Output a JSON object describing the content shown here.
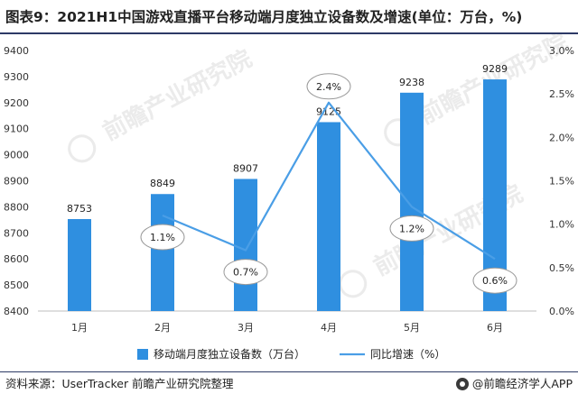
{
  "title": "图表9：2021H1中国游戏直播平台移动端月度独立设备数及增速(单位：万台，%)",
  "source": "资料来源：UserTracker 前瞻产业研究院整理",
  "brand": "@前瞻经济学人APP",
  "watermark": "前瞻产业研究院",
  "colors": {
    "bar": "#2f8fe0",
    "line": "#4a9ee6",
    "rule": "#2d3a66"
  },
  "chart_data": {
    "type": "bar",
    "categories": [
      "1月",
      "2月",
      "3月",
      "4月",
      "5月",
      "6月"
    ],
    "series": [
      {
        "name": "移动端月度独立设备数（万台）",
        "type": "bar",
        "axis": "left",
        "values": [
          8753,
          8849,
          8907,
          9125,
          9238,
          9289
        ],
        "labels": [
          "8753",
          "8849",
          "8907",
          "9125",
          "9238",
          "9289"
        ]
      },
      {
        "name": "同比增速（%）",
        "type": "line",
        "axis": "right",
        "values": [
          1.1,
          0.7,
          2.4,
          1.2,
          0.6
        ],
        "x": [
          "2月",
          "3月",
          "4月",
          "5月",
          "6月"
        ],
        "labels": [
          "1.1%",
          "0.7%",
          "2.4%",
          "1.2%",
          "0.6%"
        ]
      }
    ],
    "left_axis": {
      "min": 8400,
      "max": 9400,
      "ticks": [
        "8400",
        "8500",
        "8600",
        "8700",
        "8800",
        "8900",
        "9000",
        "9100",
        "9200",
        "9300",
        "9400"
      ]
    },
    "right_axis": {
      "min": 0,
      "max": 3,
      "ticks": [
        "0.0%",
        "0.5%",
        "1.0%",
        "1.5%",
        "2.0%",
        "2.5%",
        "3.0%"
      ]
    },
    "grid": false,
    "legend_position": "bottom"
  }
}
